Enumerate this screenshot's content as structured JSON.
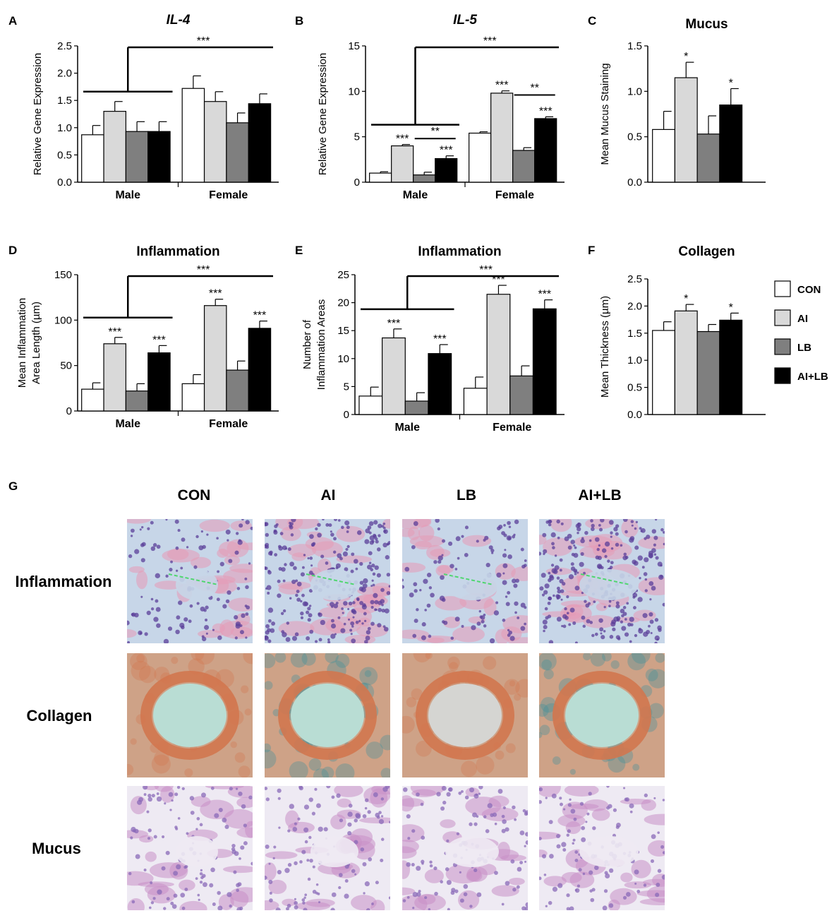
{
  "figure": {
    "legend": {
      "items": [
        {
          "label": "CON",
          "color": "#ffffff"
        },
        {
          "label": "AI",
          "color": "#d9d9d9"
        },
        {
          "label": "LB",
          "color": "#7f7f7f"
        },
        {
          "label": "AI+LB",
          "color": "#000000"
        }
      ]
    },
    "histology": {
      "panel_letter": "G",
      "columns": [
        "CON",
        "AI",
        "LB",
        "AI+LB"
      ],
      "rows": [
        "Inflammation",
        "Collagen",
        "Mucus"
      ],
      "stain_colors": {
        "Inflammation": {
          "bg": "#c7d6e8",
          "tissue": "#e59ab6",
          "nuclei": "#5b3f9a"
        },
        "Collagen": {
          "bg": "#c9d8cc",
          "tissue": "#d2774f",
          "fiber": "#3f8f9a"
        },
        "Mucus": {
          "bg": "#eeeaf3",
          "tissue": "#c98fc6",
          "nuclei": "#8a6ab8"
        }
      }
    }
  },
  "chart_data": [
    {
      "panel": "A",
      "title": "IL-4",
      "title_italic": true,
      "type": "bar",
      "ylabel": "Relative Gene Expression",
      "ylim": [
        0,
        2.5
      ],
      "yticks": [
        "0.0",
        "0.5",
        "1.0",
        "1.5",
        "2.0",
        "2.5"
      ],
      "categories": [
        "Male",
        "Female"
      ],
      "series": [
        {
          "name": "CON",
          "values": [
            0.87,
            1.72
          ],
          "errors": [
            0.17,
            0.23
          ]
        },
        {
          "name": "AI",
          "values": [
            1.3,
            1.48
          ],
          "errors": [
            0.18,
            0.18
          ]
        },
        {
          "name": "LB",
          "values": [
            0.93,
            1.09
          ],
          "errors": [
            0.18,
            0.18
          ]
        },
        {
          "name": "AI+LB",
          "values": [
            0.93,
            1.44
          ],
          "errors": [
            0.18,
            0.18
          ]
        }
      ],
      "sig": [
        {
          "type": "bracket_groups",
          "label": "***"
        }
      ],
      "bar_sig": []
    },
    {
      "panel": "B",
      "title": "IL-5",
      "title_italic": true,
      "type": "bar",
      "ylabel": "Relative Gene Expression",
      "ylim": [
        0,
        15
      ],
      "yticks": [
        "0",
        "5",
        "10",
        "15"
      ],
      "categories": [
        "Male",
        "Female"
      ],
      "series": [
        {
          "name": "CON",
          "values": [
            1.0,
            5.4
          ],
          "errors": [
            0.15,
            0.15
          ]
        },
        {
          "name": "AI",
          "values": [
            4.0,
            9.8
          ],
          "errors": [
            0.15,
            0.25
          ]
        },
        {
          "name": "LB",
          "values": [
            0.8,
            3.5
          ],
          "errors": [
            0.3,
            0.3
          ]
        },
        {
          "name": "AI+LB",
          "values": [
            2.6,
            7.0
          ],
          "errors": [
            0.3,
            0.2
          ]
        }
      ],
      "sig": [
        {
          "type": "bracket_groups",
          "label": "***"
        }
      ],
      "bar_sig": [
        {
          "group": 0,
          "series": 1,
          "label": "***"
        },
        {
          "group": 0,
          "series": 3,
          "label": "***"
        },
        {
          "group": 1,
          "series": 1,
          "label": "***"
        },
        {
          "group": 1,
          "series": 3,
          "label": "***"
        }
      ],
      "pair_sig": [
        {
          "group": 0,
          "from": 2,
          "to": 3,
          "value": 4.8,
          "label": "**"
        },
        {
          "group": 1,
          "from": 2,
          "to": 3,
          "value": 9.6,
          "label": "**"
        }
      ]
    },
    {
      "panel": "C",
      "title": "Mucus",
      "title_italic": false,
      "type": "bar",
      "ylabel": "Mean Mucus Staining",
      "ylim": [
        0,
        1.5
      ],
      "yticks": [
        "0.0",
        "0.5",
        "1.0",
        "1.5"
      ],
      "categories": [
        ""
      ],
      "series": [
        {
          "name": "CON",
          "values": [
            0.58
          ],
          "errors": [
            0.2
          ]
        },
        {
          "name": "AI",
          "values": [
            1.15
          ],
          "errors": [
            0.17
          ]
        },
        {
          "name": "LB",
          "values": [
            0.53
          ],
          "errors": [
            0.2
          ]
        },
        {
          "name": "AI+LB",
          "values": [
            0.85
          ],
          "errors": [
            0.18
          ]
        }
      ],
      "sig": [],
      "bar_sig": [
        {
          "group": 0,
          "series": 1,
          "label": "*"
        },
        {
          "group": 0,
          "series": 3,
          "label": "*"
        }
      ]
    },
    {
      "panel": "D",
      "title": "Inflammation",
      "title_italic": false,
      "type": "bar",
      "ylabel": [
        "Mean Inflammation",
        "Area Length (µm)"
      ],
      "ylim": [
        0,
        150
      ],
      "yticks": [
        "0",
        "50",
        "100",
        "150"
      ],
      "categories": [
        "Male",
        "Female"
      ],
      "series": [
        {
          "name": "CON",
          "values": [
            24,
            30
          ],
          "errors": [
            7,
            10
          ]
        },
        {
          "name": "AI",
          "values": [
            74,
            116
          ],
          "errors": [
            7,
            7
          ]
        },
        {
          "name": "LB",
          "values": [
            22,
            45
          ],
          "errors": [
            8,
            10
          ]
        },
        {
          "name": "AI+LB",
          "values": [
            64,
            91
          ],
          "errors": [
            8,
            8
          ]
        }
      ],
      "sig": [
        {
          "type": "bracket_groups",
          "label": "***"
        }
      ],
      "bar_sig": [
        {
          "group": 0,
          "series": 1,
          "label": "***"
        },
        {
          "group": 0,
          "series": 3,
          "label": "***"
        },
        {
          "group": 1,
          "series": 1,
          "label": "***"
        },
        {
          "group": 1,
          "series": 3,
          "label": "***"
        }
      ]
    },
    {
      "panel": "E",
      "title": "Inflammation",
      "title_italic": false,
      "type": "bar",
      "ylabel": [
        "Number of",
        "Inflammation Areas"
      ],
      "ylim": [
        0,
        25
      ],
      "yticks": [
        "0",
        "5",
        "10",
        "15",
        "20",
        "25"
      ],
      "categories": [
        "Male",
        "Female"
      ],
      "series": [
        {
          "name": "CON",
          "values": [
            3.3,
            4.7
          ],
          "errors": [
            1.6,
            2.0
          ]
        },
        {
          "name": "AI",
          "values": [
            13.7,
            21.5
          ],
          "errors": [
            1.6,
            1.6
          ]
        },
        {
          "name": "LB",
          "values": [
            2.4,
            6.9
          ],
          "errors": [
            1.5,
            1.8
          ]
        },
        {
          "name": "AI+LB",
          "values": [
            10.9,
            18.9
          ],
          "errors": [
            1.6,
            1.6
          ]
        }
      ],
      "sig": [
        {
          "type": "bracket_groups",
          "label": "***"
        }
      ],
      "bar_sig": [
        {
          "group": 0,
          "series": 1,
          "label": "***"
        },
        {
          "group": 0,
          "series": 3,
          "label": "***"
        },
        {
          "group": 1,
          "series": 1,
          "label": "***"
        },
        {
          "group": 1,
          "series": 3,
          "label": "***"
        }
      ]
    },
    {
      "panel": "F",
      "title": "Collagen",
      "title_italic": false,
      "type": "bar",
      "ylabel": "Mean Thickness (µm)",
      "ylim": [
        0,
        2.5
      ],
      "yticks": [
        "0.0",
        "0.5",
        "1.0",
        "1.5",
        "2.0",
        "2.5"
      ],
      "categories": [
        ""
      ],
      "series": [
        {
          "name": "CON",
          "values": [
            1.55
          ],
          "errors": [
            0.16
          ]
        },
        {
          "name": "AI",
          "values": [
            1.91
          ],
          "errors": [
            0.12
          ]
        },
        {
          "name": "LB",
          "values": [
            1.53
          ],
          "errors": [
            0.13
          ]
        },
        {
          "name": "AI+LB",
          "values": [
            1.74
          ],
          "errors": [
            0.13
          ]
        }
      ],
      "sig": [],
      "bar_sig": [
        {
          "group": 0,
          "series": 1,
          "label": "*"
        },
        {
          "group": 0,
          "series": 3,
          "label": "*"
        }
      ]
    }
  ]
}
